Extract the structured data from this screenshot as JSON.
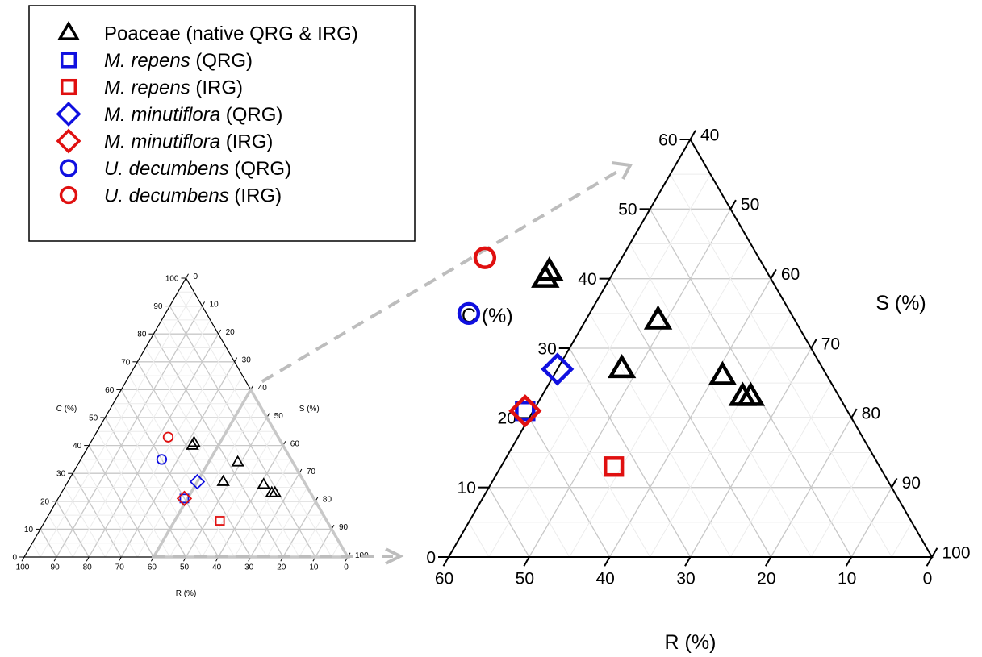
{
  "legend": {
    "items": [
      {
        "key": "poaceae",
        "name": "Poaceae (native QRG & IRG)",
        "italic": "",
        "suffix": "",
        "marker": "triangle",
        "color": "#000000"
      },
      {
        "key": "mrepens_qrg",
        "name": "",
        "italic": "M. repens",
        "suffix": " (QRG)",
        "marker": "square",
        "color": "#1010e0"
      },
      {
        "key": "mrepens_irg",
        "name": "",
        "italic": "M. repens",
        "suffix": " (IRG)",
        "marker": "square",
        "color": "#e01010"
      },
      {
        "key": "mminut_qrg",
        "name": "",
        "italic": "M. minutiflora",
        "suffix": " (QRG)",
        "marker": "diamond",
        "color": "#1010e0"
      },
      {
        "key": "mminut_irg",
        "name": "",
        "italic": "M. minutiflora",
        "suffix": " (IRG)",
        "marker": "diamond",
        "color": "#e01010"
      },
      {
        "key": "udec_qrg",
        "name": "",
        "italic": "U. decumbens",
        "suffix": " (QRG)",
        "marker": "circle",
        "color": "#1010e0"
      },
      {
        "key": "udec_irg",
        "name": "",
        "italic": "U. decumbens",
        "suffix": " (IRG)",
        "marker": "circle",
        "color": "#e01010"
      }
    ]
  },
  "chart_data": [
    {
      "type": "scatter",
      "subtype": "ternary",
      "view": "full",
      "axis_labels": {
        "C": "C (%)",
        "S": "S (%)",
        "R": "R (%)"
      },
      "C_ticks": [
        "0",
        "10",
        "20",
        "30",
        "40",
        "50",
        "60",
        "70",
        "80",
        "90",
        "100"
      ],
      "S_ticks": [
        "0",
        "10",
        "20",
        "30",
        "40",
        "50",
        "60",
        "70",
        "80",
        "90",
        "100"
      ],
      "R_ticks": [
        "100",
        "90",
        "80",
        "70",
        "60",
        "50",
        "40",
        "30",
        "20",
        "10",
        "0"
      ],
      "range": {
        "C": [
          0,
          100
        ],
        "S": [
          0,
          100
        ],
        "R": [
          0,
          100
        ]
      },
      "grid": true,
      "zoom_outline": "R ≤ 60, C ≤ 60, S ≥ 40"
    },
    {
      "type": "scatter",
      "subtype": "ternary",
      "view": "zoom",
      "axis_labels": {
        "C": "C (%)",
        "S": "S (%)",
        "R": "R (%)"
      },
      "C_ticks": [
        "0",
        "10",
        "20",
        "30",
        "40",
        "50",
        "60"
      ],
      "S_ticks": [
        "40",
        "50",
        "60",
        "70",
        "80",
        "90",
        "100"
      ],
      "R_ticks": [
        "60",
        "50",
        "40",
        "30",
        "20",
        "10",
        "0"
      ],
      "range": {
        "C": [
          0,
          60
        ],
        "S": [
          40,
          100
        ],
        "R": [
          0,
          60
        ]
      },
      "grid": true
    }
  ],
  "points": [
    {
      "series": "poaceae",
      "C": 41,
      "R": 27
    },
    {
      "series": "poaceae",
      "C": 40,
      "R": 28
    },
    {
      "series": "poaceae",
      "C": 34,
      "R": 17
    },
    {
      "series": "poaceae",
      "C": 27,
      "R": 25
    },
    {
      "series": "poaceae",
      "C": 26,
      "R": 13
    },
    {
      "series": "poaceae",
      "C": 23,
      "R": 12
    },
    {
      "series": "poaceae",
      "C": 23,
      "R": 11
    },
    {
      "series": "mrepens_qrg",
      "C": 21,
      "R": 40
    },
    {
      "series": "mrepens_irg",
      "C": 13,
      "R": 33
    },
    {
      "series": "mminut_qrg",
      "C": 27,
      "R": 33
    },
    {
      "series": "mminut_irg",
      "C": 21,
      "R": 40
    },
    {
      "series": "udec_qrg",
      "C": 35,
      "R": 40
    },
    {
      "series": "udec_irg",
      "C": 43,
      "R": 34
    }
  ]
}
